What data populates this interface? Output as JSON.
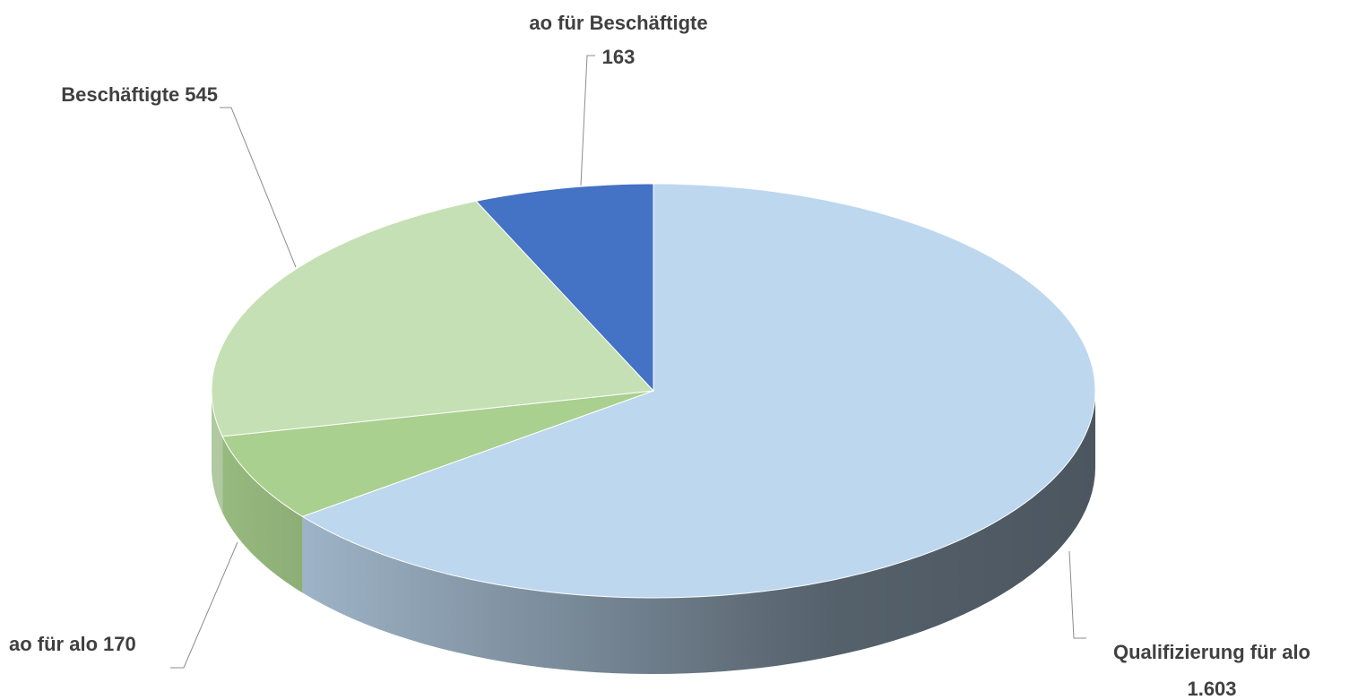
{
  "chart_data": {
    "type": "pie",
    "categories": [
      "Qualifizierung für alo",
      "ao für alo",
      "Beschäftigte",
      "ao für Beschäftigte"
    ],
    "values": [
      1603,
      170,
      545,
      163
    ],
    "value_labels": [
      "1.603",
      "170",
      "545",
      "163"
    ],
    "colors": [
      "#bdd7ee",
      "#a9d08e",
      "#c5e0b4",
      "#4472c4"
    ],
    "start_angle": 0,
    "direction": "clockwise",
    "three_d": true
  }
}
